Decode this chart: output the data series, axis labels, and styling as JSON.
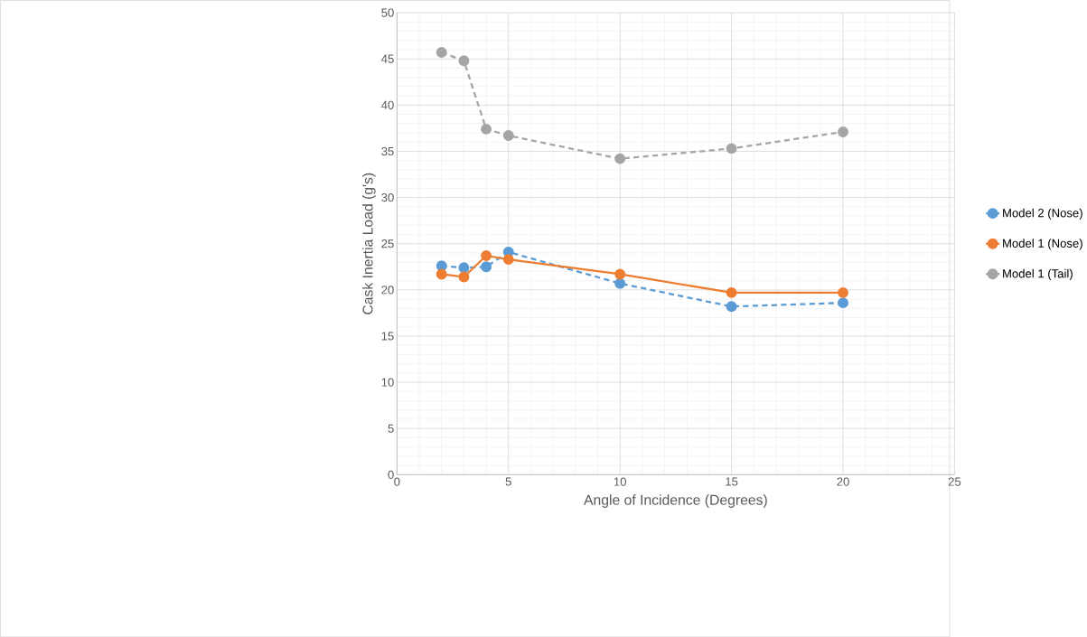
{
  "chart_data": {
    "type": "line",
    "xlabel": "Angle of Incidence (Degrees)",
    "ylabel": "Cask Inertia Load (g's)",
    "x": [
      2,
      3,
      4,
      5,
      10,
      15,
      20
    ],
    "series": [
      {
        "name": "Model 2 (Nose)",
        "color": "#5b9bd5",
        "line_style": "dashed",
        "values": [
          22.6,
          22.4,
          22.5,
          24.1,
          20.7,
          18.2,
          18.6
        ]
      },
      {
        "name": "Model 1 (Nose)",
        "color": "#ed7d31",
        "line_style": "solid",
        "values": [
          21.7,
          21.4,
          23.7,
          23.3,
          21.7,
          19.7,
          19.7
        ]
      },
      {
        "name": "Model 1 (Tail)",
        "color": "#a5a5a5",
        "line_style": "dashed",
        "values": [
          45.7,
          44.8,
          37.4,
          36.7,
          34.2,
          35.3,
          37.1
        ]
      }
    ],
    "xlim": [
      0,
      25
    ],
    "ylim": [
      0,
      50
    ],
    "xticks": [
      0,
      5,
      10,
      15,
      20,
      25
    ],
    "yticks": [
      0,
      5,
      10,
      15,
      20,
      25,
      30,
      35,
      40,
      45,
      50
    ],
    "grid": true,
    "legend": "right",
    "marker": "circle"
  }
}
